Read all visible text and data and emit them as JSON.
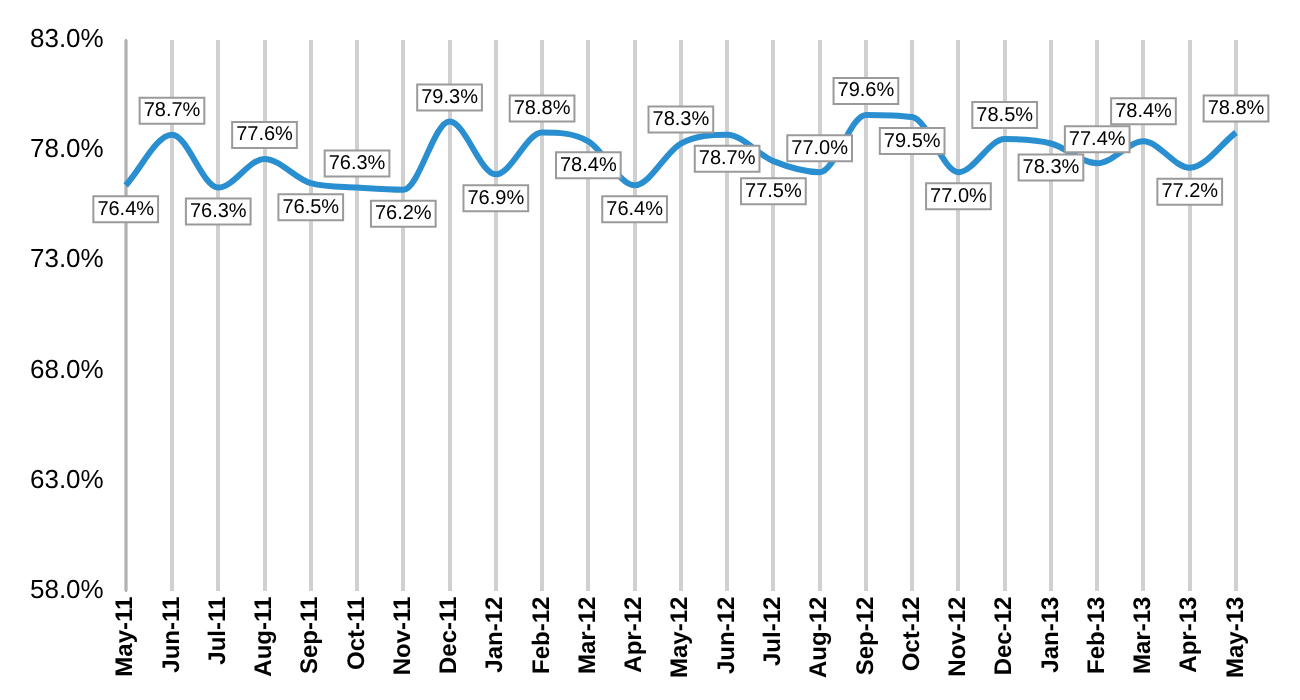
{
  "chart_data": {
    "type": "line",
    "categories": [
      "May-11",
      "Jun-11",
      "Jul-11",
      "Aug-11",
      "Sep-11",
      "Oct-11",
      "Nov-11",
      "Dec-11",
      "Jan-12",
      "Feb-12",
      "Mar-12",
      "Apr-12",
      "May-12",
      "Jun-12",
      "Jul-12",
      "Aug-12",
      "Sep-12",
      "Oct-12",
      "Nov-12",
      "Dec-12",
      "Jan-13",
      "Feb-13",
      "Mar-13",
      "Apr-13",
      "May-13"
    ],
    "series": [
      {
        "color": "#2a8fd0",
        "values": [
          76.4,
          78.7,
          76.3,
          77.6,
          76.5,
          76.3,
          76.2,
          79.3,
          76.9,
          78.8,
          78.4,
          76.4,
          78.3,
          78.7,
          77.5,
          77.0,
          79.6,
          79.5,
          77.0,
          78.5,
          78.3,
          77.4,
          78.4,
          77.2,
          78.8
        ],
        "value_labels": [
          "76.4%",
          "78.7%",
          "76.3%",
          "77.6%",
          "76.5%",
          "76.3%",
          "76.2%",
          "79.3%",
          "76.9%",
          "78.8%",
          "78.4%",
          "76.4%",
          "78.3%",
          "78.7%",
          "77.5%",
          "77.0%",
          "79.6%",
          "79.5%",
          "77.0%",
          "78.5%",
          "78.3%",
          "77.4%",
          "78.4%",
          "77.2%",
          "78.8%"
        ]
      }
    ],
    "ylim": [
      58,
      83
    ],
    "yticks": [
      {
        "value": 58,
        "label": "58.0%"
      },
      {
        "value": 63,
        "label": "63.0%"
      },
      {
        "value": 68,
        "label": "68.0%"
      },
      {
        "value": 73,
        "label": "73.0%"
      },
      {
        "value": 78,
        "label": "78.0%"
      },
      {
        "value": 83,
        "label": "83.0%"
      }
    ],
    "grid": "x",
    "legend": false,
    "marker": "none",
    "line_style": "solid"
  }
}
